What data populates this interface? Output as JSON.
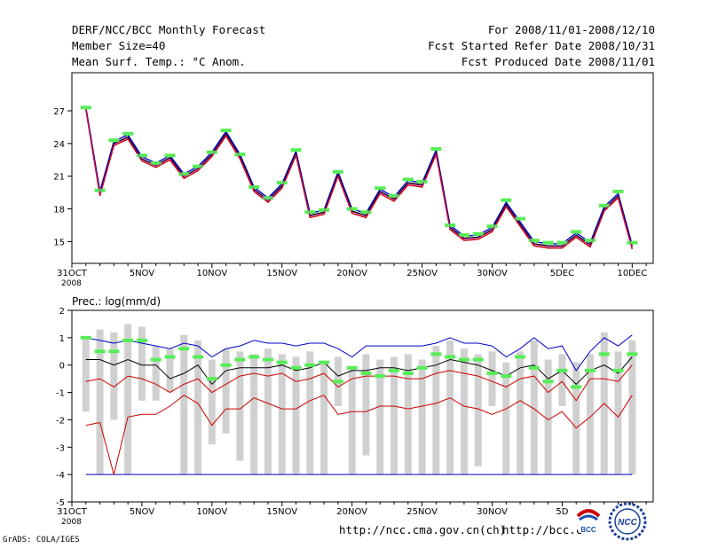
{
  "header": {
    "title": "DERF/NCC/BCC Monthly Forecast",
    "member": "Member Size=40",
    "variable": "Mean Surf. Temp.: °C Anom.",
    "period": "For 2008/11/01-2008/12/10",
    "start": "Fcst Started Refer Date 2008/10/31",
    "produced": "Fcst Produced Date 2008/11/01"
  },
  "footer": {
    "url1": "http://ncc.cma.gov.cn(ch)",
    "url2": "http://bcc.c",
    "credit": "GrADS: COLA/IGES",
    "logo1_text": "BCC",
    "logo2_text": "NCC"
  },
  "colors": {
    "blue": "#0000cc",
    "red": "#cc0000",
    "black": "#000000",
    "green": "#55ee55",
    "gray": "#d0d0d0",
    "magenta": "#cc00cc"
  },
  "chart_data": [
    {
      "type": "line",
      "title": "Mean Surf. Temp.: °C Anom.",
      "x_ticks": [
        {
          "day": 0,
          "label": "31OCT",
          "sub": "2008"
        },
        {
          "day": 5,
          "label": "5NOV"
        },
        {
          "day": 10,
          "label": "10NOV"
        },
        {
          "day": 15,
          "label": "15NOV"
        },
        {
          "day": 20,
          "label": "20NOV"
        },
        {
          "day": 25,
          "label": "25NOV"
        },
        {
          "day": 30,
          "label": "30NOV"
        },
        {
          "day": 35,
          "label": "5DEC"
        },
        {
          "day": 40,
          "label": "10DEC"
        }
      ],
      "ylim": [
        13,
        30.5
      ],
      "y_ticks": [
        15,
        18,
        21,
        24,
        27
      ],
      "x": [
        1,
        2,
        3,
        4,
        5,
        6,
        7,
        8,
        9,
        10,
        11,
        12,
        13,
        14,
        15,
        16,
        17,
        18,
        19,
        20,
        21,
        22,
        23,
        24,
        25,
        26,
        27,
        28,
        29,
        30,
        31,
        32,
        33,
        34,
        35,
        36,
        37,
        38,
        39,
        40
      ],
      "series": [
        {
          "name": "upper",
          "color": "#0000cc",
          "values": [
            27.3,
            19.6,
            24.2,
            24.8,
            22.8,
            22.2,
            22.9,
            21.2,
            21.9,
            23.2,
            25.1,
            23.0,
            20.0,
            19.0,
            20.3,
            23.3,
            17.6,
            17.9,
            21.4,
            18.0,
            17.6,
            19.8,
            19.1,
            20.6,
            20.4,
            23.4,
            16.5,
            15.5,
            15.6,
            16.3,
            18.6,
            16.8,
            15.0,
            14.8,
            14.8,
            15.8,
            14.9,
            18.2,
            19.4,
            14.7
          ]
        },
        {
          "name": "ensemble mean",
          "color": "#000000",
          "values": [
            27.2,
            19.4,
            24.0,
            24.6,
            22.6,
            22.0,
            22.7,
            21.0,
            21.7,
            23.0,
            24.9,
            22.8,
            19.8,
            18.8,
            20.1,
            23.1,
            17.4,
            17.7,
            21.2,
            17.8,
            17.4,
            19.6,
            18.9,
            20.4,
            20.2,
            23.2,
            16.3,
            15.3,
            15.4,
            16.1,
            18.4,
            16.6,
            14.8,
            14.6,
            14.6,
            15.6,
            14.7,
            18.0,
            19.2,
            14.5
          ]
        },
        {
          "name": "lower",
          "color": "#cc0000",
          "values": [
            27.1,
            19.2,
            23.8,
            24.4,
            22.4,
            21.8,
            22.5,
            20.8,
            21.5,
            22.8,
            24.7,
            22.6,
            19.6,
            18.6,
            19.9,
            22.9,
            17.2,
            17.5,
            21.0,
            17.6,
            17.2,
            19.4,
            18.7,
            20.2,
            20.0,
            23.0,
            16.1,
            15.1,
            15.2,
            15.9,
            18.2,
            16.4,
            14.6,
            14.4,
            14.4,
            15.4,
            14.5,
            17.8,
            19.0,
            14.3
          ]
        },
        {
          "name": "observed",
          "color": "#55ee55",
          "style": "marker",
          "values": [
            27.3,
            19.7,
            24.3,
            24.9,
            22.9,
            22.2,
            22.9,
            21.2,
            21.9,
            23.2,
            25.2,
            23.0,
            20.0,
            19.0,
            20.4,
            23.4,
            17.7,
            17.9,
            21.4,
            18.0,
            17.7,
            19.9,
            19.2,
            20.7,
            20.5,
            23.5,
            16.5,
            15.6,
            15.7,
            16.4,
            18.8,
            17.1,
            15.1,
            14.9,
            14.9,
            15.9,
            15.1,
            18.3,
            19.6,
            14.9
          ]
        }
      ]
    },
    {
      "type": "bar",
      "title": "Prec.: log(mm/d)",
      "x_ticks": [
        {
          "day": 0,
          "label": "31OCT",
          "sub": "2008"
        },
        {
          "day": 5,
          "label": "5NOV"
        },
        {
          "day": 10,
          "label": "10NOV"
        },
        {
          "day": 15,
          "label": "15NOV"
        },
        {
          "day": 20,
          "label": "20NOV"
        },
        {
          "day": 25,
          "label": "25NOV"
        },
        {
          "day": 30,
          "label": "30NOV"
        },
        {
          "day": 35,
          "label": "5D"
        }
      ],
      "ylim": [
        -5,
        2
      ],
      "y_ticks": [
        -5,
        -4,
        -3,
        -2,
        -1,
        0,
        1,
        2
      ],
      "x": [
        1,
        2,
        3,
        4,
        5,
        6,
        7,
        8,
        9,
        10,
        11,
        12,
        13,
        14,
        15,
        16,
        17,
        18,
        19,
        20,
        21,
        22,
        23,
        24,
        25,
        26,
        27,
        28,
        29,
        30,
        31,
        32,
        33,
        34,
        35,
        36,
        37,
        38,
        39,
        40
      ],
      "bars": {
        "top": [
          1.0,
          1.3,
          1.2,
          1.5,
          1.4,
          0.7,
          0.6,
          1.1,
          0.9,
          0.2,
          0.6,
          0.5,
          0.4,
          0.6,
          0.4,
          0.3,
          0.5,
          0.1,
          0.3,
          -0.1,
          0.4,
          0.2,
          0.3,
          0.4,
          0.2,
          0.7,
          0.9,
          0.6,
          0.4,
          0.5,
          0.1,
          0.5,
          0.9,
          0.2,
          0.4,
          0.1,
          0.4,
          1.2,
          0.5,
          0.9
        ],
        "bottom": [
          -1.7,
          -4.0,
          -2.0,
          -4.0,
          -1.3,
          -1.3,
          -1.0,
          -4.0,
          -4.0,
          -2.9,
          -2.5,
          -3.5,
          -4.0,
          -4.0,
          -4.0,
          -4.0,
          -4.0,
          -4.0,
          -1.5,
          -4.0,
          -3.3,
          -4.0,
          -4.0,
          -4.0,
          -4.0,
          -4.0,
          -4.0,
          -4.0,
          -3.7,
          -1.5,
          -4.0,
          -4.0,
          -4.0,
          -4.0,
          -1.5,
          -4.0,
          -4.0,
          -4.0,
          -4.0,
          -4.0
        ]
      },
      "series": [
        {
          "name": "upper",
          "color": "#0000cc",
          "values": [
            1.0,
            0.9,
            0.8,
            0.9,
            0.8,
            0.7,
            0.6,
            0.8,
            0.7,
            0.3,
            0.6,
            0.7,
            0.9,
            0.8,
            0.8,
            0.7,
            0.8,
            0.8,
            0.6,
            0.3,
            0.7,
            0.7,
            0.7,
            0.7,
            0.7,
            0.8,
            1.0,
            0.8,
            0.8,
            0.7,
            0.3,
            0.6,
            1.0,
            0.6,
            0.7,
            -0.2,
            0.5,
            1.0,
            0.7,
            1.1
          ]
        },
        {
          "name": "ensemble mean",
          "color": "#000000",
          "values": [
            0.2,
            0.2,
            0.0,
            0.2,
            0.0,
            0.0,
            -0.5,
            -0.3,
            0.0,
            -0.7,
            -0.2,
            -0.1,
            -0.1,
            -0.1,
            0.0,
            -0.2,
            -0.1,
            0.1,
            -0.4,
            -0.2,
            -0.2,
            -0.1,
            -0.1,
            -0.2,
            -0.1,
            0.0,
            0.2,
            0.1,
            0.0,
            -0.2,
            -0.4,
            -0.1,
            0.0,
            -0.5,
            -0.2,
            -0.7,
            -0.2,
            0.0,
            -0.3,
            0.3
          ]
        },
        {
          "name": "upper red",
          "color": "#cc0000",
          "values": [
            -0.6,
            -0.5,
            -0.8,
            -0.4,
            -0.5,
            -0.7,
            -1.0,
            -0.7,
            -0.5,
            -1.0,
            -0.7,
            -0.4,
            -0.3,
            -0.4,
            -0.3,
            -0.6,
            -0.5,
            -0.3,
            -0.8,
            -0.5,
            -0.4,
            -0.4,
            -0.4,
            -0.5,
            -0.5,
            -0.3,
            -0.2,
            -0.3,
            -0.4,
            -0.6,
            -0.8,
            -0.5,
            -0.4,
            -1.0,
            -0.6,
            -1.3,
            -0.5,
            -0.5,
            -0.6,
            0.0
          ]
        },
        {
          "name": "lower red",
          "color": "#cc0000",
          "values": [
            -2.2,
            -2.1,
            -4.0,
            -1.9,
            -1.8,
            -1.8,
            -1.5,
            -1.1,
            -1.4,
            -2.2,
            -1.6,
            -1.6,
            -1.2,
            -1.4,
            -1.6,
            -1.6,
            -1.3,
            -1.1,
            -1.8,
            -1.7,
            -1.7,
            -1.5,
            -1.5,
            -1.6,
            -1.5,
            -1.4,
            -1.2,
            -1.5,
            -1.6,
            -1.8,
            -1.6,
            -1.3,
            -1.6,
            -2.0,
            -1.7,
            -2.3,
            -1.9,
            -1.4,
            -1.9,
            -1.1
          ]
        },
        {
          "name": "observed",
          "color": "#55ee55",
          "style": "marker",
          "values": [
            1.0,
            0.5,
            0.5,
            0.9,
            0.9,
            0.2,
            0.3,
            0.6,
            0.3,
            -0.5,
            0.0,
            0.2,
            0.3,
            0.2,
            0.1,
            -0.1,
            0.0,
            0.1,
            -0.6,
            -0.1,
            -0.3,
            -0.4,
            -0.2,
            -0.3,
            -0.1,
            0.4,
            0.3,
            0.2,
            0.2,
            -0.3,
            -0.4,
            0.3,
            -0.1,
            -0.6,
            -0.2,
            -0.8,
            -0.2,
            0.4,
            -0.2,
            0.4
          ]
        }
      ],
      "baseline": -4
    }
  ]
}
